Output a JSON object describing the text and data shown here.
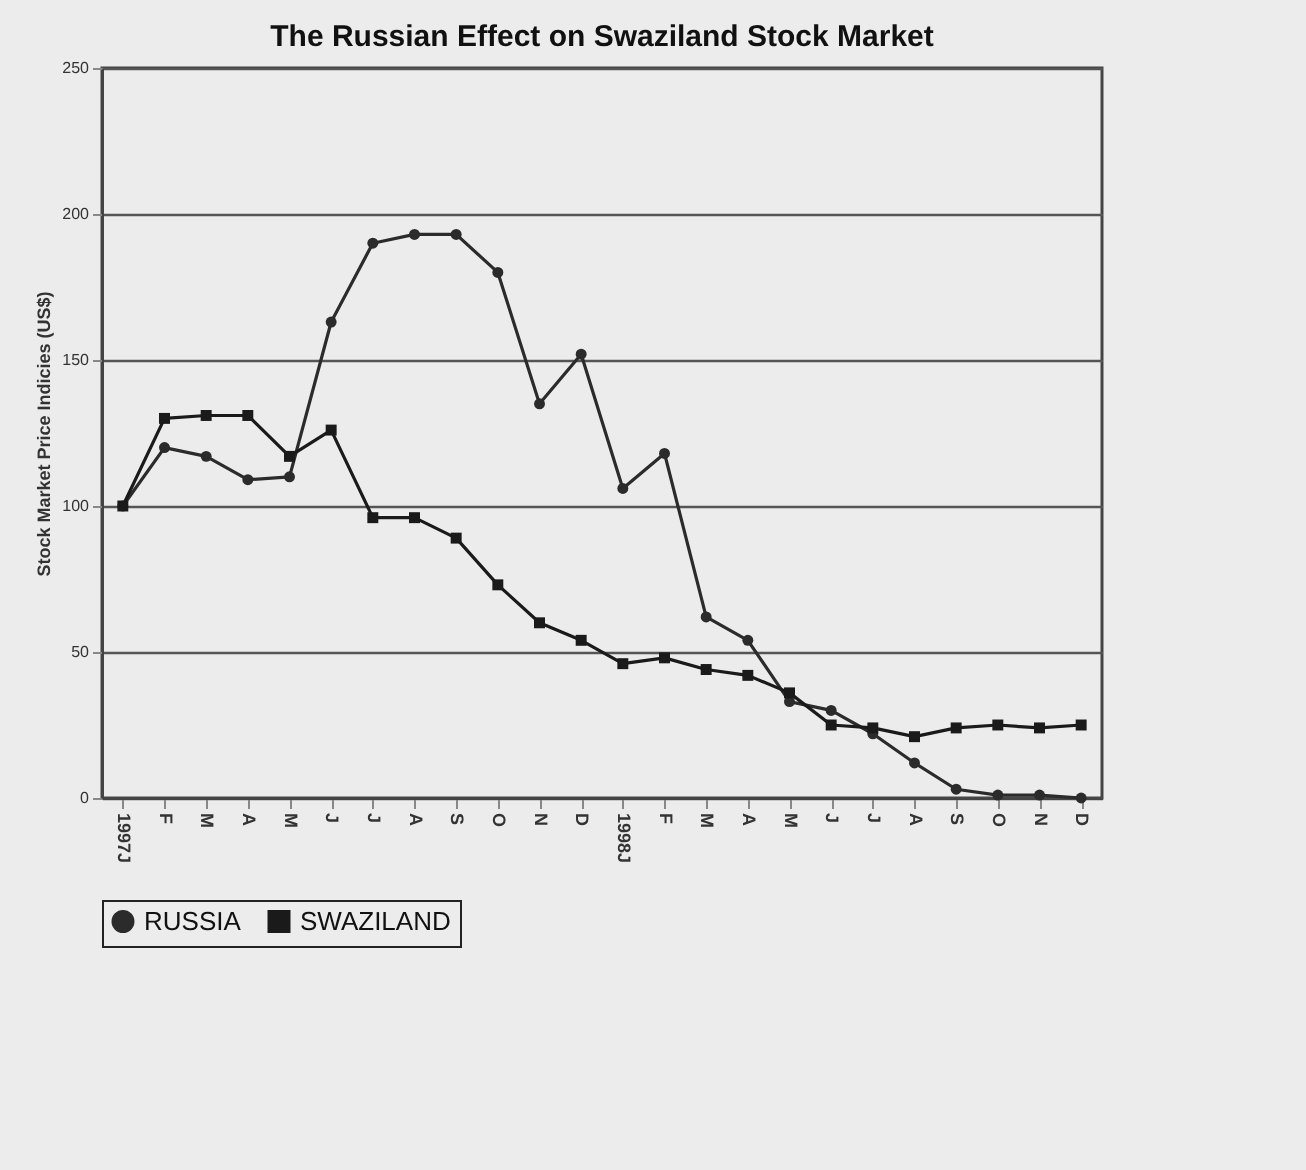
{
  "chart_data": {
    "type": "line",
    "title": "The Russian Effect on Swaziland Stock Market",
    "ylabel": "Stock Market Price Indicies (US$)",
    "categories": [
      "1997J",
      "F",
      "M",
      "A",
      "M",
      "J",
      "J",
      "A",
      "S",
      "O",
      "N",
      "D",
      "1998J",
      "F",
      "M",
      "A",
      "M",
      "J",
      "J",
      "A",
      "S",
      "O",
      "N",
      "D"
    ],
    "series": [
      {
        "name": "RUSSIA",
        "color": "#2b2b2b",
        "marker": "circle",
        "values": [
          100,
          120,
          117,
          109,
          110,
          163,
          190,
          193,
          193,
          180,
          135,
          152,
          106,
          118,
          62,
          54,
          33,
          30,
          22,
          12,
          3,
          1,
          1,
          0
        ]
      },
      {
        "name": "SWAZILAND",
        "color": "#1a1a1a",
        "marker": "square",
        "values": [
          100,
          130,
          131,
          131,
          117,
          126,
          96,
          96,
          89,
          73,
          60,
          54,
          46,
          48,
          44,
          42,
          36,
          25,
          24,
          21,
          24,
          25,
          24,
          25
        ]
      }
    ],
    "ylim": [
      0,
      250
    ],
    "yticks": [
      0,
      50,
      100,
      150,
      200,
      250
    ],
    "grid": "y",
    "legend": "bottom",
    "line_style": "solid"
  }
}
